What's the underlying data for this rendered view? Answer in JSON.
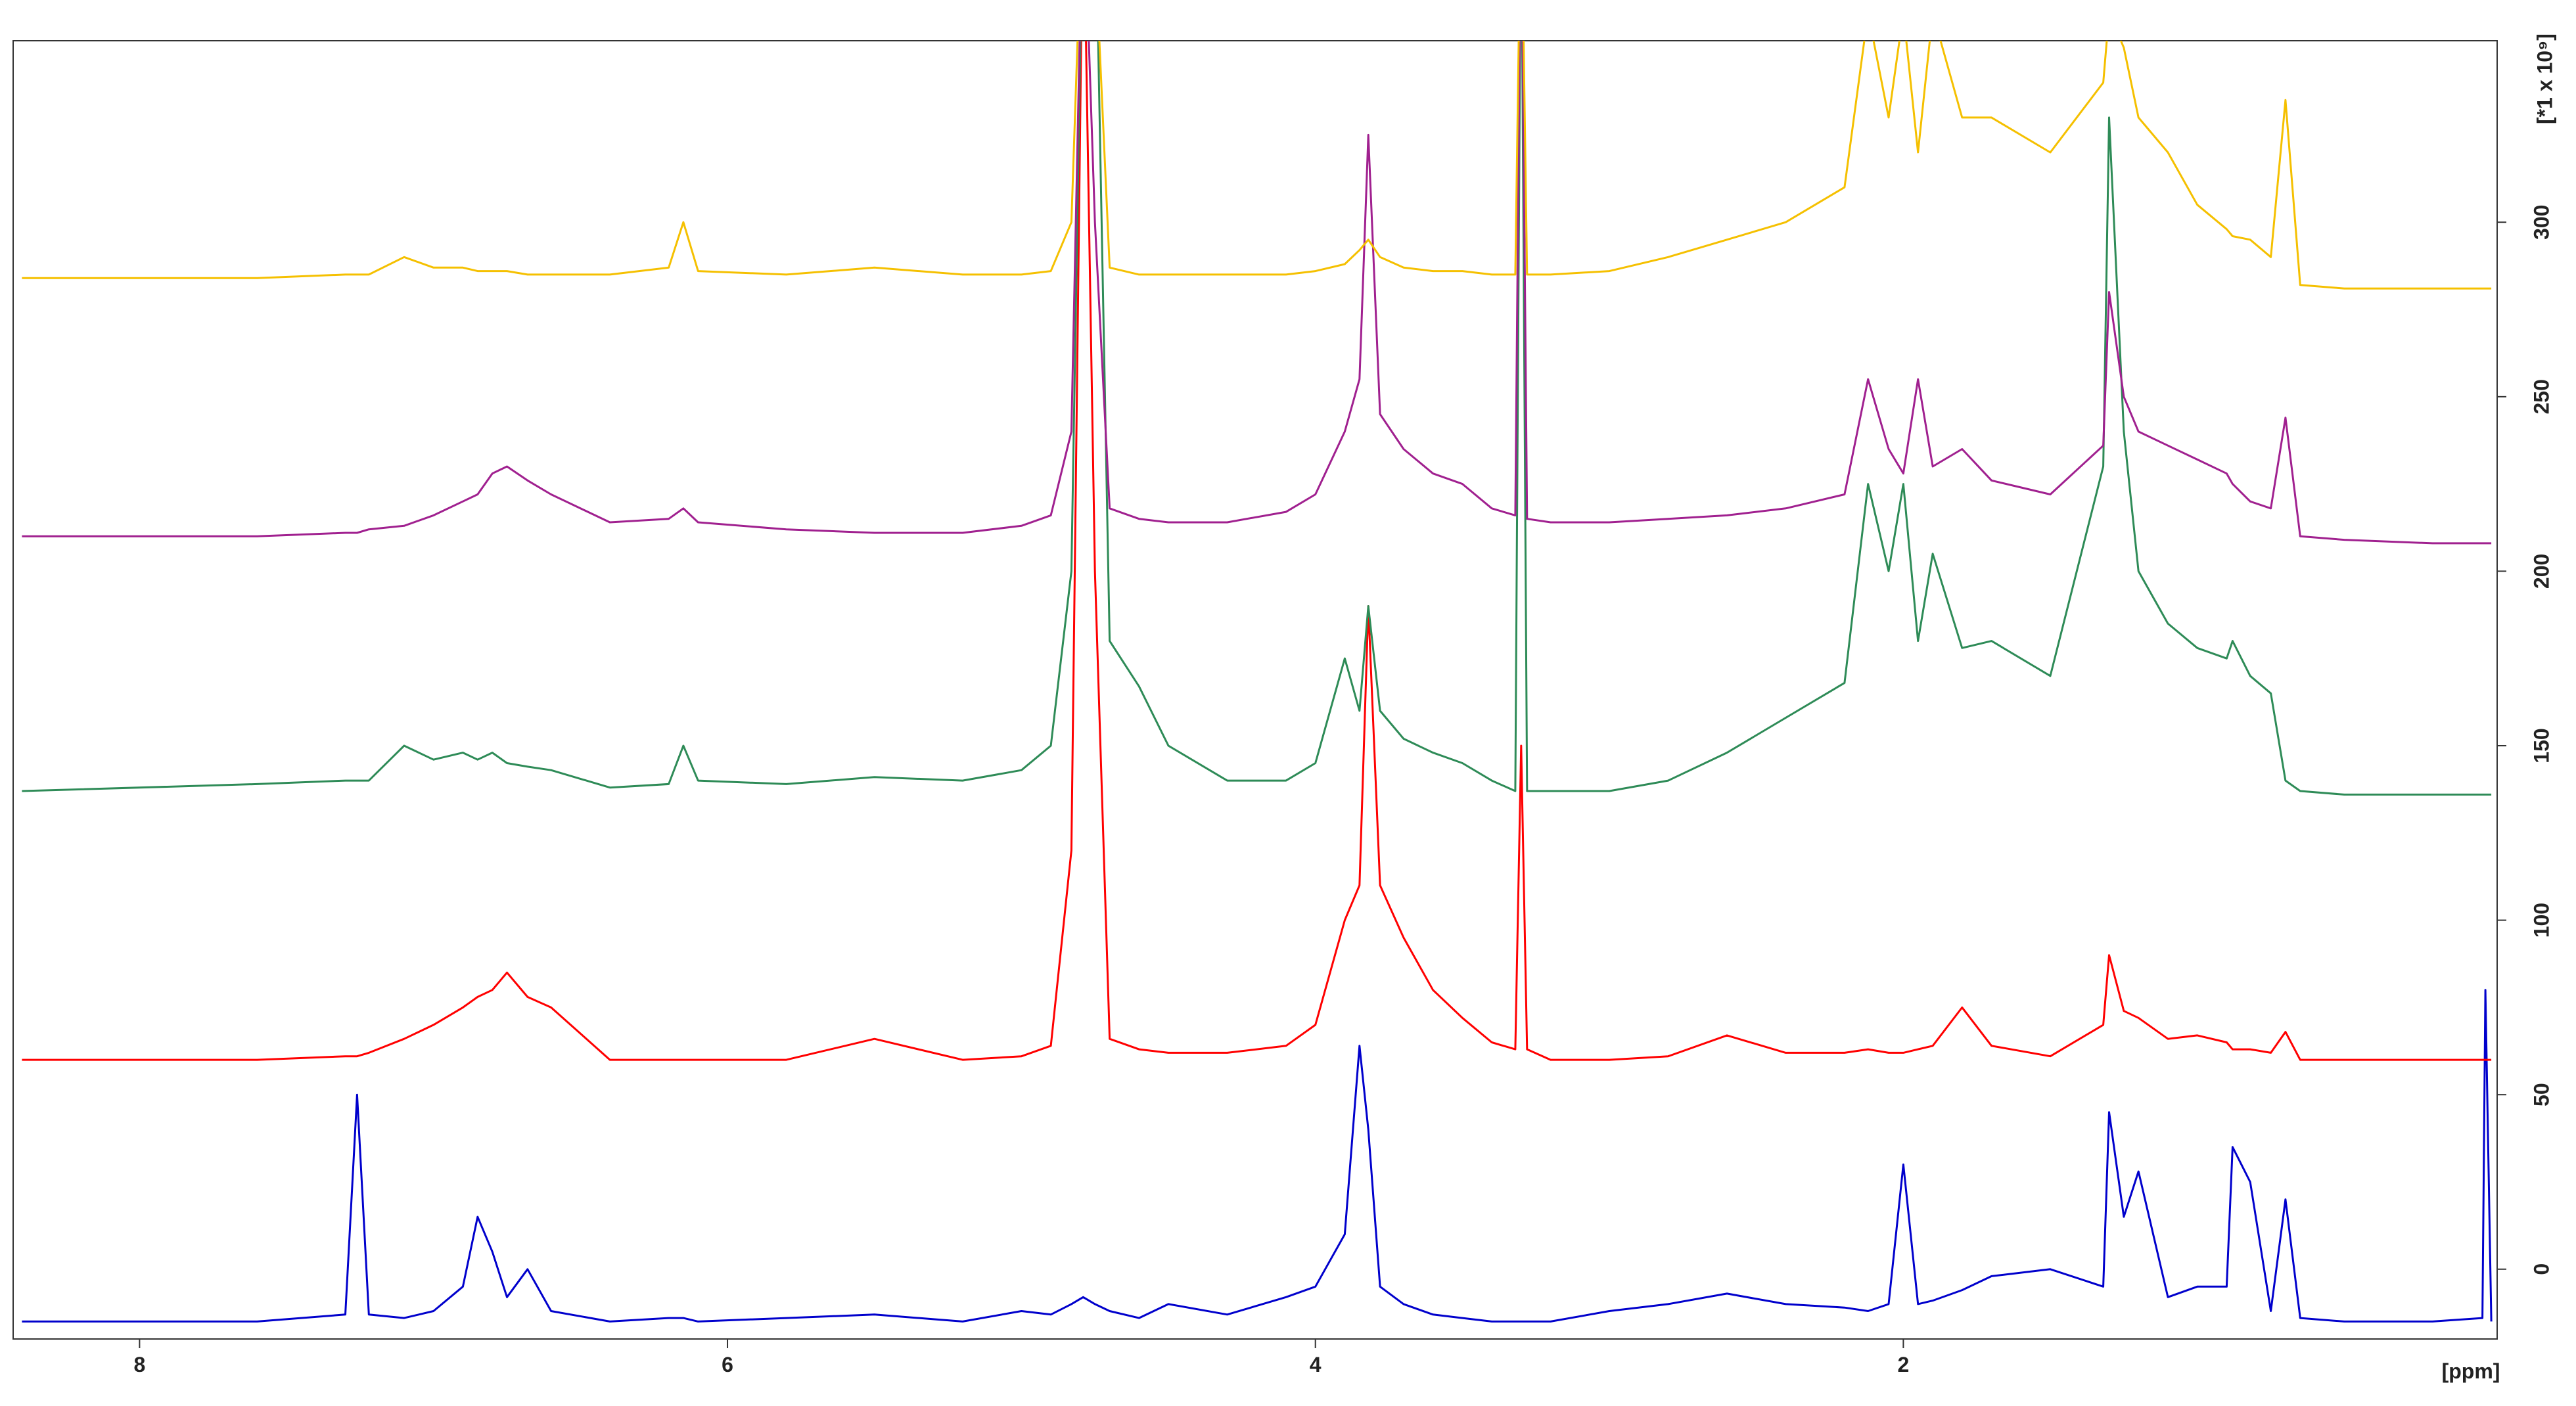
{
  "chart_data": {
    "type": "line",
    "x_label": "[ppm]",
    "y_label": "[*1 x 10⁹]",
    "xlim": [
      8.43,
      -0.02
    ],
    "ylim": [
      -20,
      352
    ],
    "xticks": [
      8,
      6,
      4,
      2
    ],
    "yticks": [
      0,
      50,
      100,
      150,
      200,
      250,
      300
    ],
    "x": [
      8.4,
      7.6,
      7.3,
      7.26,
      7.22,
      7.1,
      7.0,
      6.9,
      6.85,
      6.8,
      6.75,
      6.68,
      6.6,
      6.4,
      6.2,
      6.15,
      6.1,
      5.8,
      5.5,
      5.2,
      5.0,
      4.9,
      4.83,
      4.79,
      4.75,
      4.7,
      4.6,
      4.5,
      4.3,
      4.1,
      4.0,
      3.9,
      3.85,
      3.82,
      3.78,
      3.7,
      3.6,
      3.5,
      3.4,
      3.32,
      3.3,
      3.28,
      3.2,
      3.0,
      2.8,
      2.6,
      2.4,
      2.2,
      2.12,
      2.05,
      2.0,
      1.95,
      1.9,
      1.8,
      1.7,
      1.5,
      1.32,
      1.3,
      1.25,
      1.2,
      1.1,
      1.0,
      0.9,
      0.88,
      0.82,
      0.75,
      0.7,
      0.65,
      0.5,
      0.2,
      0.03,
      0.02,
      0.0
    ],
    "series": [
      {
        "color": "#0000cc",
        "values": [
          -15,
          -15,
          -13,
          50,
          -13,
          -14,
          -12,
          -5,
          15,
          5,
          -8,
          0,
          -12,
          -15,
          -14,
          -14,
          -15,
          -14,
          -13,
          -15,
          -12,
          -13,
          -10,
          -8,
          -10,
          -12,
          -14,
          -10,
          -13,
          -8,
          -5,
          10,
          64,
          40,
          -5,
          -10,
          -13,
          -14,
          -15,
          -15,
          -15,
          -15,
          -15,
          -12,
          -10,
          -7,
          -10,
          -11,
          -12,
          -10,
          30,
          -10,
          -9,
          -6,
          -2,
          0,
          -5,
          45,
          15,
          28,
          -8,
          -5,
          -5,
          35,
          25,
          -12,
          20,
          -14,
          -15,
          -15,
          -14,
          80,
          -15
        ]
      },
      {
        "color": "#ff0000",
        "values": [
          60,
          60,
          61,
          61,
          62,
          66,
          70,
          75,
          78,
          80,
          85,
          78,
          75,
          60,
          60,
          60,
          60,
          60,
          66,
          60,
          61,
          64,
          120,
          400,
          200,
          66,
          63,
          62,
          62,
          64,
          70,
          100,
          110,
          190,
          110,
          95,
          80,
          72,
          65,
          63,
          150,
          63,
          60,
          60,
          61,
          67,
          62,
          62,
          63,
          62,
          62,
          63,
          64,
          75,
          64,
          61,
          70,
          90,
          74,
          72,
          66,
          67,
          65,
          63,
          63,
          62,
          68,
          60,
          60,
          60,
          60,
          60,
          60
        ]
      },
      {
        "color": "#2e8b57",
        "values": [
          137,
          139,
          140,
          140,
          140,
          150,
          146,
          148,
          146,
          148,
          145,
          144,
          143,
          138,
          139,
          150,
          140,
          139,
          141,
          140,
          143,
          150,
          200,
          400,
          400,
          180,
          167,
          150,
          140,
          140,
          145,
          175,
          160,
          190,
          160,
          152,
          148,
          145,
          140,
          137,
          400,
          137,
          137,
          137,
          140,
          148,
          158,
          168,
          225,
          200,
          225,
          180,
          205,
          178,
          180,
          170,
          230,
          330,
          240,
          200,
          185,
          178,
          175,
          180,
          170,
          165,
          140,
          137,
          136,
          136,
          136,
          136,
          136
        ]
      },
      {
        "color": "#a0208f",
        "values": [
          210,
          210,
          211,
          211,
          212,
          213,
          216,
          220,
          222,
          228,
          230,
          226,
          222,
          214,
          215,
          218,
          214,
          212,
          211,
          211,
          213,
          216,
          240,
          400,
          300,
          218,
          215,
          214,
          214,
          217,
          222,
          240,
          255,
          325,
          245,
          235,
          228,
          225,
          218,
          216,
          400,
          215,
          214,
          214,
          215,
          216,
          218,
          222,
          255,
          235,
          228,
          255,
          230,
          235,
          226,
          222,
          236,
          280,
          250,
          240,
          236,
          232,
          228,
          225,
          220,
          218,
          244,
          210,
          209,
          208,
          208,
          208,
          208
        ]
      },
      {
        "color": "#f5c000",
        "values": [
          284,
          284,
          285,
          285,
          285,
          290,
          287,
          287,
          286,
          286,
          286,
          285,
          285,
          285,
          287,
          300,
          286,
          285,
          287,
          285,
          285,
          286,
          300,
          400,
          380,
          287,
          285,
          285,
          285,
          285,
          286,
          288,
          292,
          295,
          290,
          287,
          286,
          286,
          285,
          285,
          400,
          285,
          285,
          286,
          290,
          295,
          300,
          310,
          360,
          330,
          360,
          320,
          360,
          330,
          330,
          320,
          340,
          360,
          350,
          330,
          320,
          305,
          298,
          296,
          295,
          290,
          335,
          282,
          281,
          281,
          281,
          281,
          281
        ]
      }
    ]
  }
}
